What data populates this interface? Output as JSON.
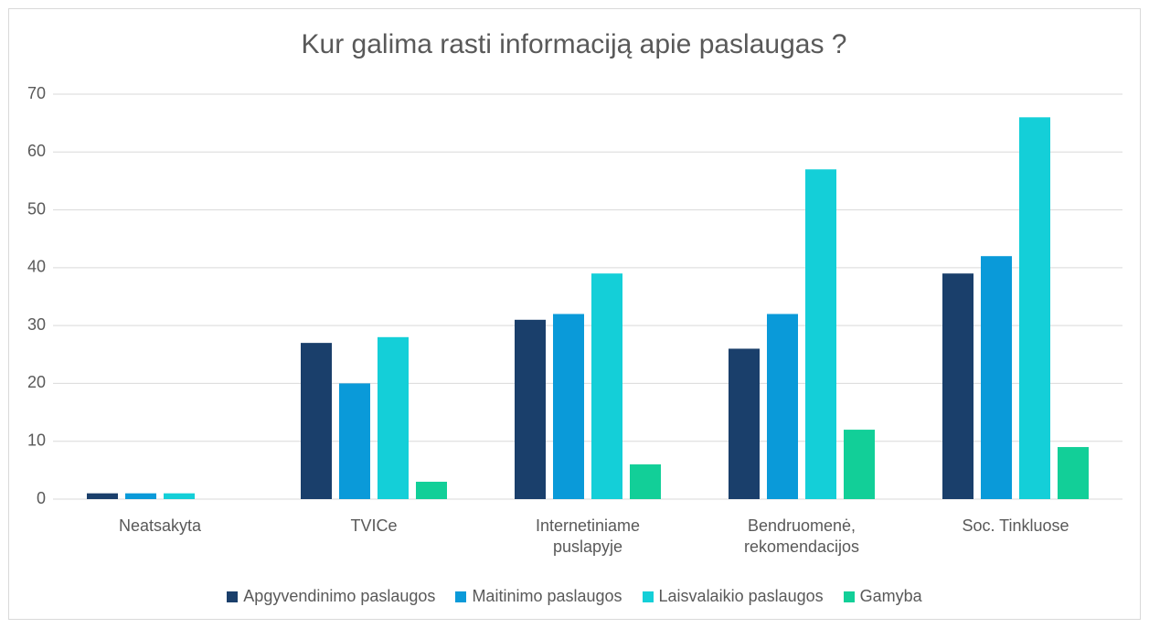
{
  "chart_data": {
    "type": "bar",
    "title": "Kur galima rasti informaciją apie paslaugas ?",
    "categories": [
      "Neatsakyta",
      "TVICe",
      "Internetiniame puslapyje",
      "Bendruomenė, rekomendacijos",
      "Soc. Tinkluose"
    ],
    "series": [
      {
        "name": "Apgyvendinimo paslaugos",
        "color": "#1a3f6b",
        "values": [
          1,
          27,
          31,
          26,
          39
        ]
      },
      {
        "name": "Maitinimo paslaugos",
        "color": "#0a9ad9",
        "values": [
          1,
          20,
          32,
          32,
          42
        ]
      },
      {
        "name": "Laisvalaikio paslaugos",
        "color": "#14cfd8",
        "values": [
          1,
          28,
          39,
          57,
          66
        ]
      },
      {
        "name": "Gamyba",
        "color": "#12cf98",
        "values": [
          0,
          3,
          6,
          12,
          9
        ]
      }
    ],
    "ylim": [
      0,
      70
    ],
    "yticks": [
      0,
      10,
      20,
      30,
      40,
      50,
      60,
      70
    ],
    "grid": true,
    "legend": "bottom"
  }
}
